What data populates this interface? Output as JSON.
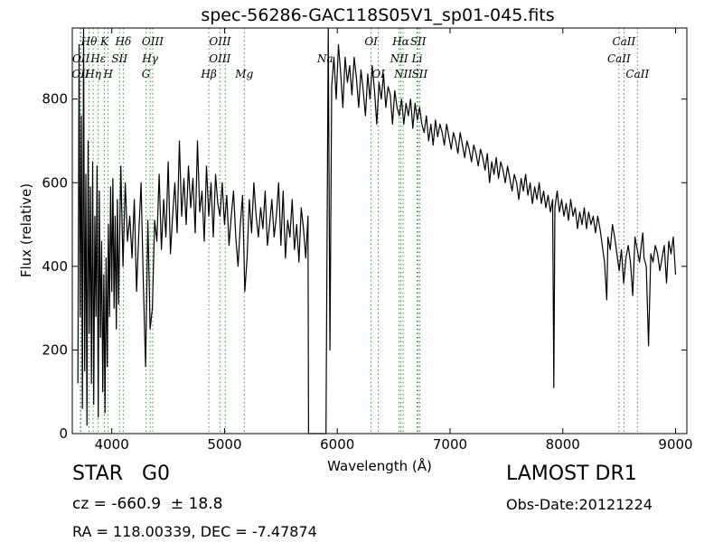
{
  "chart_data": {
    "type": "line",
    "title": "spec-56286-GAC118S05V1_sp01-045.fits",
    "xlabel": "Wavelength (Å)",
    "ylabel": "Flux (relative)",
    "xlim": [
      3650,
      9100
    ],
    "ylim": [
      0,
      970
    ],
    "xticks": [
      4000,
      5000,
      6000,
      7000,
      8000,
      9000
    ],
    "yticks": [
      0,
      200,
      400,
      600,
      800
    ],
    "grid": false,
    "line_color": "#000000",
    "marker_color": "#2ca02c",
    "series": [
      {
        "points": [
          [
            3700,
            120
          ],
          [
            3710,
            930
          ],
          [
            3720,
            280
          ],
          [
            3730,
            760
          ],
          [
            3740,
            60
          ],
          [
            3750,
            980
          ],
          [
            3760,
            150
          ],
          [
            3770,
            620
          ],
          [
            3780,
            20
          ],
          [
            3790,
            700
          ],
          [
            3800,
            240
          ],
          [
            3810,
            590
          ],
          [
            3820,
            120
          ],
          [
            3830,
            650
          ],
          [
            3840,
            70
          ],
          [
            3850,
            520
          ],
          [
            3860,
            280
          ],
          [
            3870,
            640
          ],
          [
            3880,
            40
          ],
          [
            3890,
            580
          ],
          [
            3900,
            230
          ],
          [
            3910,
            460
          ],
          [
            3920,
            100
          ],
          [
            3930,
            380
          ],
          [
            3940,
            50
          ],
          [
            3950,
            420
          ],
          [
            3960,
            160
          ],
          [
            3970,
            500
          ],
          [
            3980,
            280
          ],
          [
            3990,
            590
          ],
          [
            4000,
            340
          ],
          [
            4010,
            610
          ],
          [
            4020,
            300
          ],
          [
            4030,
            520
          ],
          [
            4040,
            250
          ],
          [
            4050,
            560
          ],
          [
            4060,
            310
          ],
          [
            4080,
            640
          ],
          [
            4100,
            400
          ],
          [
            4120,
            600
          ],
          [
            4140,
            460
          ],
          [
            4160,
            520
          ],
          [
            4180,
            420
          ],
          [
            4200,
            560
          ],
          [
            4220,
            340
          ],
          [
            4240,
            480
          ],
          [
            4260,
            600
          ],
          [
            4280,
            360
          ],
          [
            4300,
            160
          ],
          [
            4320,
            510
          ],
          [
            4340,
            250
          ],
          [
            4360,
            300
          ],
          [
            4380,
            510
          ],
          [
            4400,
            460
          ],
          [
            4420,
            620
          ],
          [
            4440,
            440
          ],
          [
            4460,
            560
          ],
          [
            4480,
            470
          ],
          [
            4500,
            650
          ],
          [
            4520,
            430
          ],
          [
            4540,
            520
          ],
          [
            4560,
            600
          ],
          [
            4580,
            480
          ],
          [
            4600,
            700
          ],
          [
            4620,
            520
          ],
          [
            4640,
            610
          ],
          [
            4660,
            500
          ],
          [
            4680,
            640
          ],
          [
            4700,
            540
          ],
          [
            4720,
            610
          ],
          [
            4740,
            480
          ],
          [
            4760,
            700
          ],
          [
            4780,
            530
          ],
          [
            4800,
            580
          ],
          [
            4820,
            460
          ],
          [
            4840,
            640
          ],
          [
            4860,
            520
          ],
          [
            4880,
            600
          ],
          [
            4900,
            470
          ],
          [
            4920,
            620
          ],
          [
            4940,
            550
          ],
          [
            4960,
            520
          ],
          [
            4980,
            600
          ],
          [
            5000,
            500
          ],
          [
            5020,
            570
          ],
          [
            5040,
            450
          ],
          [
            5060,
            520
          ],
          [
            5080,
            580
          ],
          [
            5100,
            470
          ],
          [
            5120,
            400
          ],
          [
            5140,
            500
          ],
          [
            5160,
            570
          ],
          [
            5180,
            340
          ],
          [
            5200,
            420
          ],
          [
            5220,
            560
          ],
          [
            5240,
            480
          ],
          [
            5260,
            600
          ],
          [
            5280,
            520
          ],
          [
            5300,
            470
          ],
          [
            5320,
            540
          ],
          [
            5340,
            490
          ],
          [
            5360,
            580
          ],
          [
            5380,
            450
          ],
          [
            5400,
            500
          ],
          [
            5420,
            560
          ],
          [
            5440,
            470
          ],
          [
            5460,
            520
          ],
          [
            5480,
            600
          ],
          [
            5500,
            450
          ],
          [
            5520,
            580
          ],
          [
            5540,
            420
          ],
          [
            5560,
            510
          ],
          [
            5580,
            470
          ],
          [
            5600,
            560
          ],
          [
            5620,
            440
          ],
          [
            5640,
            500
          ],
          [
            5660,
            410
          ],
          [
            5680,
            540
          ],
          [
            5700,
            490
          ],
          [
            5720,
            420
          ],
          [
            5740,
            520
          ],
          [
            5745,
            0
          ],
          [
            5850,
            0
          ],
          [
            5900,
            0
          ],
          [
            5920,
            980
          ],
          [
            5935,
            200
          ],
          [
            5950,
            830
          ],
          [
            5970,
            900
          ],
          [
            5990,
            800
          ],
          [
            6010,
            930
          ],
          [
            6030,
            860
          ],
          [
            6050,
            780
          ],
          [
            6070,
            900
          ],
          [
            6090,
            840
          ],
          [
            6110,
            880
          ],
          [
            6130,
            810
          ],
          [
            6150,
            900
          ],
          [
            6170,
            850
          ],
          [
            6190,
            780
          ],
          [
            6210,
            870
          ],
          [
            6230,
            820
          ],
          [
            6250,
            760
          ],
          [
            6270,
            860
          ],
          [
            6290,
            800
          ],
          [
            6310,
            880
          ],
          [
            6330,
            820
          ],
          [
            6350,
            740
          ],
          [
            6370,
            840
          ],
          [
            6390,
            800
          ],
          [
            6410,
            860
          ],
          [
            6430,
            780
          ],
          [
            6450,
            830
          ],
          [
            6470,
            810
          ],
          [
            6490,
            740
          ],
          [
            6510,
            820
          ],
          [
            6530,
            780
          ],
          [
            6550,
            760
          ],
          [
            6570,
            800
          ],
          [
            6590,
            740
          ],
          [
            6610,
            790
          ],
          [
            6630,
            760
          ],
          [
            6650,
            800
          ],
          [
            6670,
            730
          ],
          [
            6690,
            790
          ],
          [
            6710,
            750
          ],
          [
            6730,
            780
          ],
          [
            6750,
            740
          ],
          [
            6770,
            720
          ],
          [
            6790,
            760
          ],
          [
            6810,
            700
          ],
          [
            6830,
            740
          ],
          [
            6850,
            690
          ],
          [
            6870,
            750
          ],
          [
            6890,
            710
          ],
          [
            6910,
            740
          ],
          [
            6930,
            720
          ],
          [
            6950,
            690
          ],
          [
            6970,
            740
          ],
          [
            6990,
            710
          ],
          [
            7010,
            680
          ],
          [
            7030,
            720
          ],
          [
            7050,
            700
          ],
          [
            7070,
            670
          ],
          [
            7090,
            720
          ],
          [
            7110,
            690
          ],
          [
            7130,
            660
          ],
          [
            7150,
            700
          ],
          [
            7170,
            680
          ],
          [
            7190,
            650
          ],
          [
            7210,
            690
          ],
          [
            7230,
            670
          ],
          [
            7250,
            640
          ],
          [
            7270,
            680
          ],
          [
            7290,
            660
          ],
          [
            7310,
            630
          ],
          [
            7330,
            670
          ],
          [
            7350,
            600
          ],
          [
            7370,
            650
          ],
          [
            7390,
            620
          ],
          [
            7410,
            660
          ],
          [
            7430,
            610
          ],
          [
            7450,
            650
          ],
          [
            7470,
            630
          ],
          [
            7490,
            600
          ],
          [
            7510,
            640
          ],
          [
            7530,
            610
          ],
          [
            7550,
            580
          ],
          [
            7570,
            620
          ],
          [
            7590,
            600
          ],
          [
            7610,
            560
          ],
          [
            7630,
            610
          ],
          [
            7650,
            580
          ],
          [
            7670,
            620
          ],
          [
            7690,
            570
          ],
          [
            7710,
            600
          ],
          [
            7730,
            550
          ],
          [
            7750,
            590
          ],
          [
            7770,
            560
          ],
          [
            7790,
            600
          ],
          [
            7810,
            550
          ],
          [
            7830,
            580
          ],
          [
            7850,
            540
          ],
          [
            7870,
            570
          ],
          [
            7890,
            530
          ],
          [
            7910,
            560
          ],
          [
            7920,
            110
          ],
          [
            7930,
            540
          ],
          [
            7950,
            580
          ],
          [
            7970,
            530
          ],
          [
            7990,
            560
          ],
          [
            8010,
            520
          ],
          [
            8030,
            550
          ],
          [
            8050,
            510
          ],
          [
            8070,
            560
          ],
          [
            8090,
            520
          ],
          [
            8110,
            540
          ],
          [
            8130,
            490
          ],
          [
            8150,
            530
          ],
          [
            8170,
            500
          ],
          [
            8190,
            540
          ],
          [
            8210,
            490
          ],
          [
            8230,
            530
          ],
          [
            8250,
            500
          ],
          [
            8270,
            520
          ],
          [
            8290,
            480
          ],
          [
            8310,
            520
          ],
          [
            8330,
            490
          ],
          [
            8350,
            450
          ],
          [
            8370,
            410
          ],
          [
            8390,
            320
          ],
          [
            8400,
            470
          ],
          [
            8420,
            440
          ],
          [
            8440,
            500
          ],
          [
            8460,
            470
          ],
          [
            8480,
            430
          ],
          [
            8500,
            390
          ],
          [
            8520,
            440
          ],
          [
            8540,
            360
          ],
          [
            8560,
            420
          ],
          [
            8580,
            450
          ],
          [
            8600,
            410
          ],
          [
            8620,
            330
          ],
          [
            8640,
            470
          ],
          [
            8660,
            440
          ],
          [
            8680,
            410
          ],
          [
            8700,
            460
          ],
          [
            8710,
            480
          ],
          [
            8720,
            420
          ],
          [
            8740,
            400
          ],
          [
            8760,
            210
          ],
          [
            8780,
            430
          ],
          [
            8800,
            410
          ],
          [
            8820,
            450
          ],
          [
            8840,
            430
          ],
          [
            8860,
            390
          ],
          [
            8880,
            420
          ],
          [
            8900,
            450
          ],
          [
            8920,
            360
          ],
          [
            8940,
            460
          ],
          [
            8960,
            430
          ],
          [
            8980,
            470
          ],
          [
            9000,
            380
          ]
        ]
      }
    ],
    "line_labels": [
      {
        "text": "Hθ",
        "wave": 3798,
        "row": 0
      },
      {
        "text": "K",
        "wave": 3934,
        "row": 0
      },
      {
        "text": "Hδ",
        "wave": 4102,
        "row": 0
      },
      {
        "text": "OIII",
        "wave": 4363,
        "row": 0
      },
      {
        "text": "OIII",
        "wave": 4960,
        "row": 0
      },
      {
        "text": "OI",
        "wave": 6300,
        "row": 0
      },
      {
        "text": "Hα",
        "wave": 6563,
        "row": 0
      },
      {
        "text": "SII",
        "wave": 6717,
        "row": 0
      },
      {
        "text": "CaII",
        "wave": 8542,
        "row": 0
      },
      {
        "text": "OII",
        "wave": 3727,
        "row": 1
      },
      {
        "text": "Hε",
        "wave": 3880,
        "row": 1
      },
      {
        "text": "SII",
        "wave": 4069,
        "row": 1
      },
      {
        "text": "Hγ",
        "wave": 4340,
        "row": 1
      },
      {
        "text": "OIII",
        "wave": 4959,
        "row": 1
      },
      {
        "text": "NII",
        "wave": 6548,
        "row": 1
      },
      {
        "text": "Li",
        "wave": 6708,
        "row": 1
      },
      {
        "text": "CaII",
        "wave": 8498,
        "row": 1
      },
      {
        "text": "OII",
        "wave": 3722,
        "row": 2
      },
      {
        "text": "Hη",
        "wave": 3835,
        "row": 2
      },
      {
        "text": "H",
        "wave": 3968,
        "row": 2
      },
      {
        "text": "G",
        "wave": 4304,
        "row": 2
      },
      {
        "text": "Hβ",
        "wave": 4861,
        "row": 2
      },
      {
        "text": "Mg",
        "wave": 5175,
        "row": 2
      },
      {
        "text": "OI",
        "wave": 6364,
        "row": 2
      },
      {
        "text": "NII",
        "wave": 6584,
        "row": 2
      },
      {
        "text": "SII",
        "wave": 6731,
        "row": 2
      },
      {
        "text": "CaII",
        "wave": 8662,
        "row": 2
      },
      {
        "text": "Na",
        "wave": 5893,
        "row": 3
      }
    ],
    "marker_lines": [
      3722,
      3727,
      3798,
      3835,
      3880,
      3934,
      3968,
      4069,
      4102,
      4304,
      4340,
      4363,
      4861,
      4959,
      5007,
      5175,
      6300,
      6364,
      6548,
      6563,
      6584,
      6708,
      6717,
      6731,
      8498,
      8542,
      8662
    ]
  },
  "footer": {
    "object_class": "STAR   G0",
    "survey": "LAMOST DR1",
    "cz": "cz = -660.9  ± 18.8",
    "obs_date": "Obs-Date:20121224",
    "coords": "RA = 118.00339, DEC = -7.47874"
  }
}
